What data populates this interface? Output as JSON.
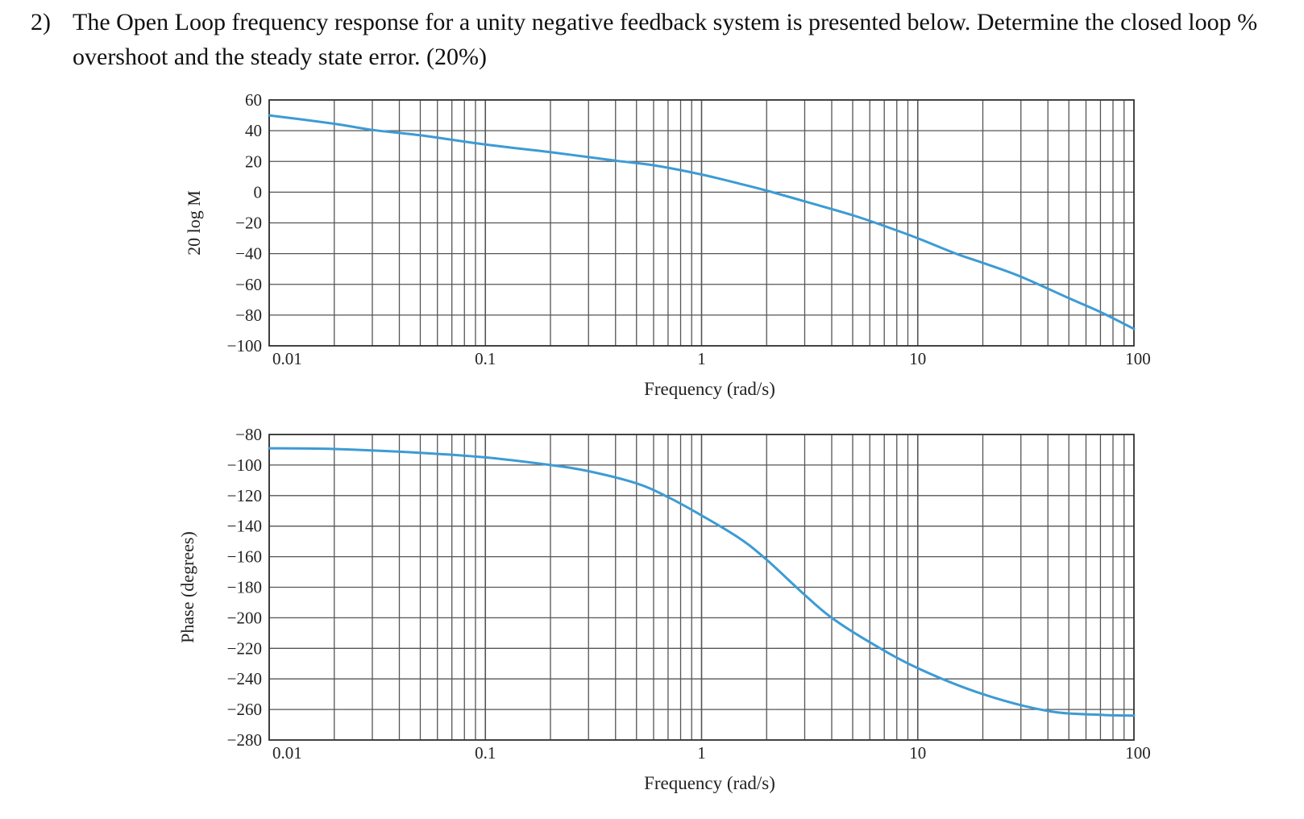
{
  "question": {
    "number": "2)",
    "text": "The Open Loop frequency response for a unity negative feedback system is presented below. Determine the closed loop % overshoot and the steady state error. (20%)"
  },
  "chart_data": [
    {
      "type": "line",
      "xscale": "log",
      "xlim": [
        0.01,
        100
      ],
      "ylim": [
        -100,
        60
      ],
      "xlabel": "Frequency (rad/s)",
      "ylabel": "20 log M",
      "xticks": [
        "0.01",
        "0.1",
        "1",
        "10",
        "100"
      ],
      "yticks": [
        "60",
        "40",
        "20",
        "0",
        "−20",
        "−40",
        "−60",
        "−80",
        "−100"
      ],
      "grid": true,
      "color": "#3d9bd4",
      "series": [
        {
          "x": [
            0.01,
            0.02,
            0.03,
            0.05,
            0.1,
            0.2,
            0.4,
            0.6,
            1,
            1.5,
            2,
            3,
            5,
            7,
            10,
            15,
            20,
            30,
            50,
            70,
            100
          ],
          "y": [
            50,
            44.5,
            40.5,
            37,
            31,
            26,
            20.5,
            17.5,
            11.5,
            5.5,
            1,
            -6,
            -15,
            -22,
            -30,
            -40,
            -46,
            -55,
            -69,
            -78,
            -89
          ]
        }
      ]
    },
    {
      "type": "line",
      "xscale": "log",
      "xlim": [
        0.01,
        100
      ],
      "ylim": [
        -280,
        -80
      ],
      "xlabel": "Frequency (rad/s)",
      "ylabel": "Phase (degrees)",
      "xticks": [
        "0.01",
        "0.1",
        "1",
        "10",
        "100"
      ],
      "yticks": [
        "−80",
        "−100",
        "−120",
        "−140",
        "−160",
        "−180",
        "−200",
        "−220",
        "−240",
        "−260",
        "−280"
      ],
      "grid": true,
      "color": "#3d9bd4",
      "series": [
        {
          "x": [
            0.01,
            0.02,
            0.05,
            0.1,
            0.2,
            0.3,
            0.5,
            0.7,
            1,
            1.5,
            2,
            3,
            4,
            6,
            10,
            20,
            40,
            70,
            100
          ],
          "y": [
            -89,
            -89.5,
            -92,
            -95,
            -100,
            -104,
            -112,
            -121,
            -133,
            -148,
            -162,
            -185,
            -200,
            -216,
            -233,
            -250,
            -261,
            -263.5,
            -264
          ]
        }
      ]
    }
  ]
}
